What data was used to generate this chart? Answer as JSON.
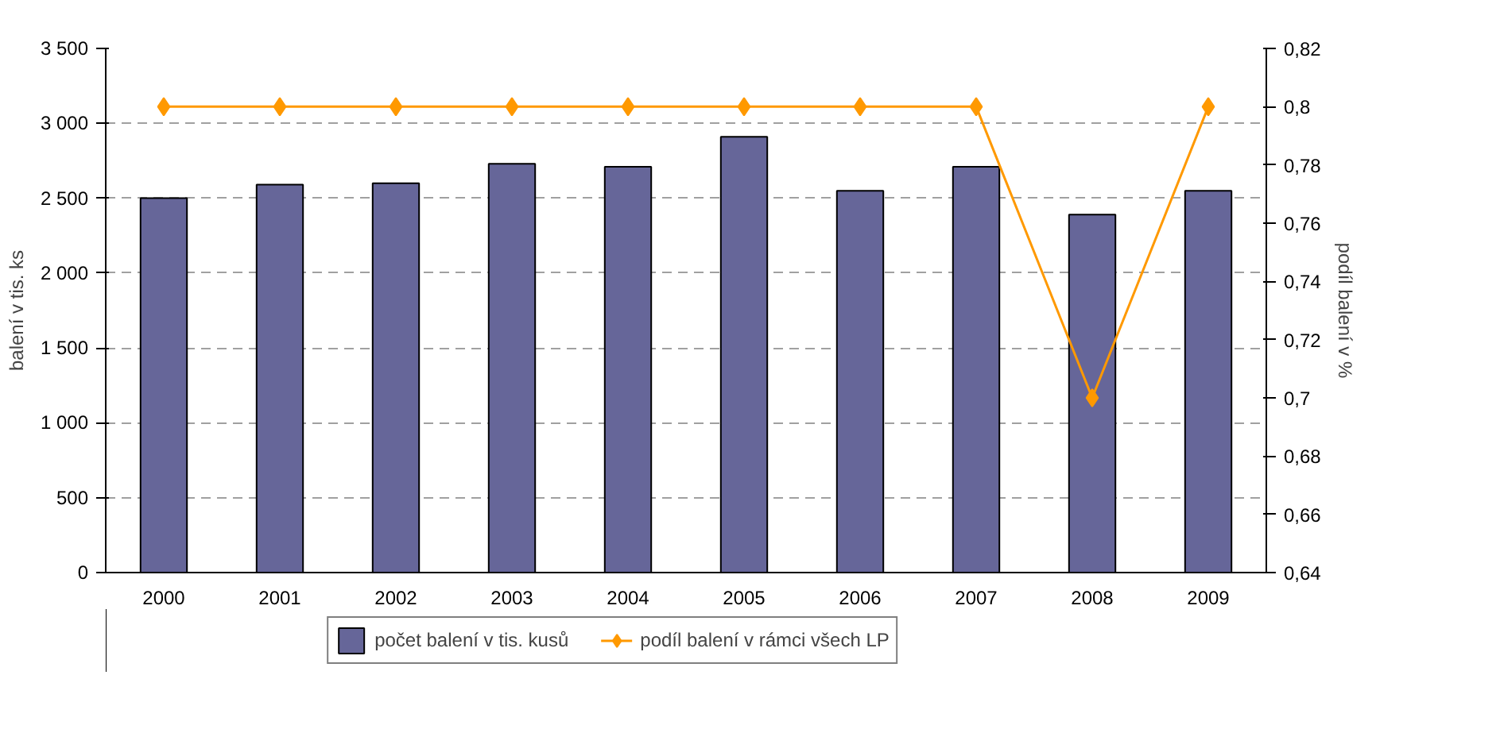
{
  "chart_data": {
    "type": "bar",
    "ylabel": "balení v tis. ks",
    "y2label": "podíl balení v %",
    "categories": [
      "2000",
      "2001",
      "2002",
      "2003",
      "2004",
      "2005",
      "2006",
      "2007",
      "2008",
      "2009"
    ],
    "series": [
      {
        "name": "počet balení v tis. kusů",
        "color": "#666699",
        "values": [
          2500,
          2590,
          2600,
          2730,
          2710,
          2910,
          2550,
          2710,
          2390,
          2550
        ]
      },
      {
        "name": "podíl balení v rámci všech LP",
        "type": "line",
        "axis": "y2",
        "color": "#ff9900",
        "marker": "diamond",
        "values": [
          0.8,
          0.8,
          0.8,
          0.8,
          0.8,
          0.8,
          0.8,
          0.8,
          0.7,
          0.8
        ]
      }
    ],
    "ylim": [
      0,
      3500
    ],
    "yticks": [
      0,
      500,
      1000,
      1500,
      2000,
      2500,
      3000,
      3500
    ],
    "y2lim": [
      0.64,
      0.82
    ],
    "y2ticks": [
      {
        "value": 0.64,
        "label": "0,64"
      },
      {
        "value": 0.66,
        "label": "0,66"
      },
      {
        "value": 0.68,
        "label": "0,68"
      },
      {
        "value": 0.7,
        "label": "0,7"
      },
      {
        "value": 0.72,
        "label": "0,72"
      },
      {
        "value": 0.74,
        "label": "0,74"
      },
      {
        "value": 0.76,
        "label": "0,76"
      },
      {
        "value": 0.78,
        "label": "0,78"
      },
      {
        "value": 0.8,
        "label": "0,8"
      },
      {
        "value": 0.82,
        "label": "0,82"
      }
    ],
    "grid": "y",
    "legend": "bottom"
  }
}
